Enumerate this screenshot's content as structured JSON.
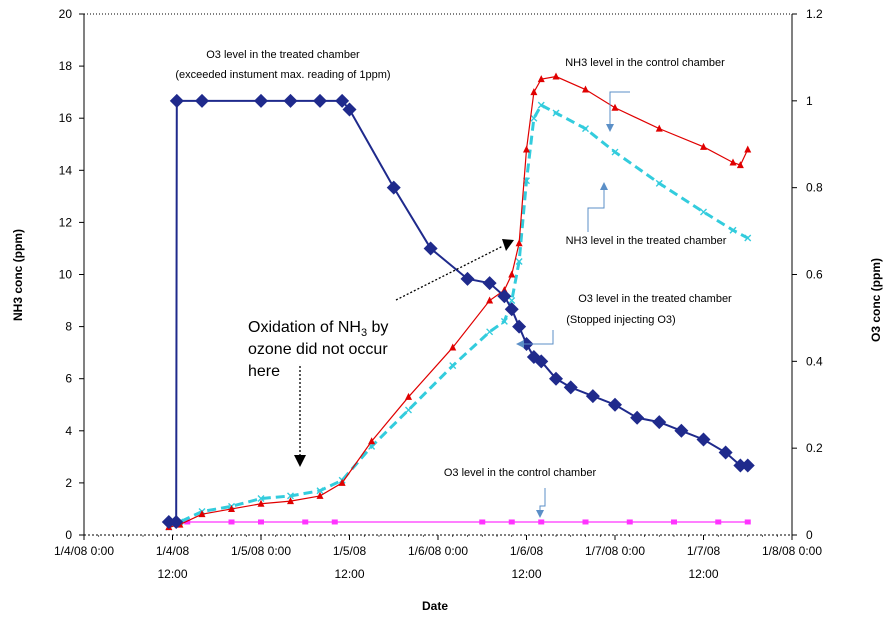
{
  "chart_data": {
    "type": "line",
    "xlabel": "Date",
    "ylabel_left": "NH3 conc (ppm)",
    "ylabel_right": "O3 conc (ppm)",
    "y_left_lim": [
      0,
      20
    ],
    "y_right_lim": [
      0,
      1.2
    ],
    "x_lim": [
      "1/4/08 0:00",
      "1/8/08 0:00"
    ],
    "x_ticks": [
      {
        "label": "1/4/08 0:00"
      },
      {
        "label": "1/4/08 12:00"
      },
      {
        "label": "1/5/08 0:00"
      },
      {
        "label": "1/5/08 12:00"
      },
      {
        "label": "1/6/08 0:00"
      },
      {
        "label": "1/6/08 12:00"
      },
      {
        "label": "1/7/08 0:00"
      },
      {
        "label": "1/7/08 12:00"
      },
      {
        "label": "1/8/08 0:00"
      }
    ],
    "y_left_ticks": [
      "0",
      "2",
      "4",
      "6",
      "8",
      "10",
      "12",
      "14",
      "16",
      "18",
      "20"
    ],
    "y_right_ticks": [
      "0",
      "0.2",
      "0.4",
      "0.6",
      "0.8",
      "1",
      "1.2"
    ],
    "colors": {
      "o3_treated": "#1f2a8c",
      "nh3_control": "#e00000",
      "nh3_treated": "#33ccdd",
      "o3_control": "#ff33ff"
    },
    "series": [
      {
        "key": "o3_treated",
        "axis": "right",
        "marker": "diamond",
        "points": [
          [
            "1/4/08 11:30",
            0.03
          ],
          [
            "1/4/08 12:30",
            0.03
          ],
          [
            "1/4/08 12:35",
            1.0
          ],
          [
            "1/4/08 16:00",
            1.0
          ],
          [
            "1/5/08 0:00",
            1.0
          ],
          [
            "1/5/08 4:00",
            1.0
          ],
          [
            "1/5/08 8:00",
            1.0
          ],
          [
            "1/5/08 11:00",
            1.0
          ],
          [
            "1/5/08 12:00",
            0.98
          ],
          [
            "1/5/08 18:00",
            0.8
          ],
          [
            "1/5/08 23:00",
            0.66
          ],
          [
            "1/6/08 4:00",
            0.59
          ],
          [
            "1/6/08 7:00",
            0.58
          ],
          [
            "1/6/08 9:00",
            0.55
          ],
          [
            "1/6/08 10:00",
            0.52
          ],
          [
            "1/6/08 11:00",
            0.48
          ],
          [
            "1/6/08 12:00",
            0.44
          ],
          [
            "1/6/08 13:00",
            0.41
          ],
          [
            "1/6/08 14:00",
            0.4
          ],
          [
            "1/6/08 16:00",
            0.36
          ],
          [
            "1/6/08 18:00",
            0.34
          ],
          [
            "1/6/08 21:00",
            0.32
          ],
          [
            "1/7/08 0:00",
            0.3
          ],
          [
            "1/7/08 3:00",
            0.27
          ],
          [
            "1/7/08 6:00",
            0.26
          ],
          [
            "1/7/08 9:00",
            0.24
          ],
          [
            "1/7/08 12:00",
            0.22
          ],
          [
            "1/7/08 15:00",
            0.19
          ],
          [
            "1/7/08 17:00",
            0.16
          ],
          [
            "1/7/08 18:00",
            0.16
          ]
        ]
      },
      {
        "key": "nh3_control",
        "axis": "left",
        "marker": "triangle",
        "points": [
          [
            "1/4/08 11:30",
            0.3
          ],
          [
            "1/4/08 13:00",
            0.4
          ],
          [
            "1/4/08 16:00",
            0.8
          ],
          [
            "1/4/08 20:00",
            1.0
          ],
          [
            "1/5/08 0:00",
            1.2
          ],
          [
            "1/5/08 4:00",
            1.3
          ],
          [
            "1/5/08 8:00",
            1.5
          ],
          [
            "1/5/08 11:00",
            2.0
          ],
          [
            "1/5/08 15:00",
            3.6
          ],
          [
            "1/5/08 20:00",
            5.3
          ],
          [
            "1/6/08 2:00",
            7.2
          ],
          [
            "1/6/08 7:00",
            9.0
          ],
          [
            "1/6/08 9:00",
            9.4
          ],
          [
            "1/6/08 10:00",
            10.0
          ],
          [
            "1/6/08 11:00",
            11.2
          ],
          [
            "1/6/08 12:00",
            14.8
          ],
          [
            "1/6/08 13:00",
            17.0
          ],
          [
            "1/6/08 14:00",
            17.5
          ],
          [
            "1/6/08 16:00",
            17.6
          ],
          [
            "1/6/08 20:00",
            17.1
          ],
          [
            "1/7/08 0:00",
            16.4
          ],
          [
            "1/7/08 6:00",
            15.6
          ],
          [
            "1/7/08 12:00",
            14.9
          ],
          [
            "1/7/08 16:00",
            14.3
          ],
          [
            "1/7/08 17:00",
            14.2
          ],
          [
            "1/7/08 18:00",
            14.8
          ]
        ]
      },
      {
        "key": "nh3_treated",
        "axis": "left",
        "marker": "cross",
        "points": [
          [
            "1/4/08 11:30",
            0.3
          ],
          [
            "1/4/08 13:00",
            0.5
          ],
          [
            "1/4/08 16:00",
            0.9
          ],
          [
            "1/4/08 20:00",
            1.1
          ],
          [
            "1/5/08 0:00",
            1.4
          ],
          [
            "1/5/08 4:00",
            1.5
          ],
          [
            "1/5/08 8:00",
            1.7
          ],
          [
            "1/5/08 11:00",
            2.1
          ],
          [
            "1/5/08 15:00",
            3.4
          ],
          [
            "1/5/08 20:00",
            4.8
          ],
          [
            "1/6/08 2:00",
            6.5
          ],
          [
            "1/6/08 7:00",
            7.8
          ],
          [
            "1/6/08 9:00",
            8.2
          ],
          [
            "1/6/08 10:00",
            9.0
          ],
          [
            "1/6/08 11:00",
            10.5
          ],
          [
            "1/6/08 12:00",
            13.6
          ],
          [
            "1/6/08 13:00",
            16.0
          ],
          [
            "1/6/08 14:00",
            16.5
          ],
          [
            "1/6/08 16:00",
            16.2
          ],
          [
            "1/6/08 20:00",
            15.6
          ],
          [
            "1/7/08 0:00",
            14.7
          ],
          [
            "1/7/08 6:00",
            13.5
          ],
          [
            "1/7/08 12:00",
            12.4
          ],
          [
            "1/7/08 16:00",
            11.7
          ],
          [
            "1/7/08 18:00",
            11.4
          ]
        ]
      },
      {
        "key": "o3_control",
        "axis": "right",
        "marker": "square",
        "points": [
          [
            "1/4/08 11:30",
            0.03
          ],
          [
            "1/4/08 14:00",
            0.03
          ],
          [
            "1/4/08 20:00",
            0.03
          ],
          [
            "1/5/08 0:00",
            0.03
          ],
          [
            "1/5/08 6:00",
            0.03
          ],
          [
            "1/5/08 10:00",
            0.03
          ],
          [
            "1/6/08 6:00",
            0.03
          ],
          [
            "1/6/08 10:00",
            0.03
          ],
          [
            "1/6/08 14:00",
            0.03
          ],
          [
            "1/6/08 20:00",
            0.03
          ],
          [
            "1/7/08 2:00",
            0.03
          ],
          [
            "1/7/08 8:00",
            0.03
          ],
          [
            "1/7/08 14:00",
            0.03
          ],
          [
            "1/7/08 18:00",
            0.03
          ]
        ]
      }
    ],
    "annotations": {
      "o3_treated_exceeded_1": "O3 level in the treated chamber",
      "o3_treated_exceeded_2": "(exceeded instument max. reading of 1ppm)",
      "nh3_control_label": "NH3 level in the control chamber",
      "nh3_treated_label": "NH3 level in the treated chamber",
      "o3_treated_stopped_1": "O3 level in the treated chamber",
      "o3_treated_stopped_2": "(Stopped injecting O3)",
      "o3_control_label": "O3 level in the control chamber",
      "oxidation_1": "Oxidation of NH",
      "oxidation_1_sub": "3",
      "oxidation_1_end": " by",
      "oxidation_2": "ozone did not occur",
      "oxidation_3": "here"
    }
  }
}
